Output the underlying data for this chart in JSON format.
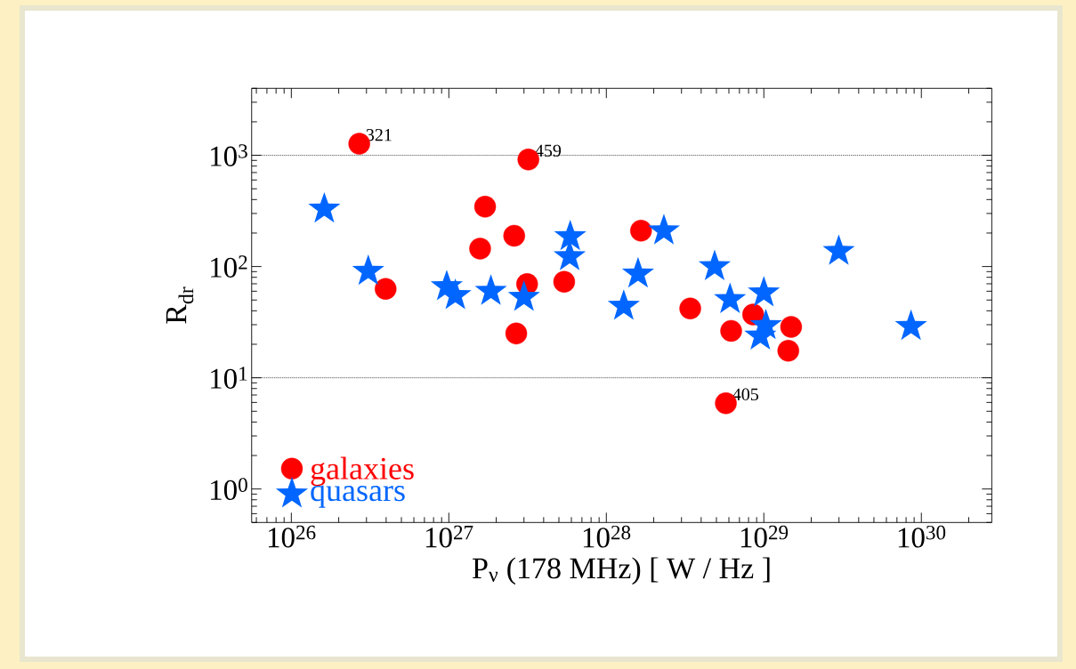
{
  "chart_data": {
    "type": "scatter",
    "xlabel": "P$_{ν}$ (178 MHz) [ W / Hz ]",
    "ylabel": "R$_{dr}$",
    "log": "xy",
    "xlim": [
      5.6e+25,
      2.8e+30
    ],
    "ylim": [
      0.5,
      4000
    ],
    "xticks": [
      {
        "value": 1e+26,
        "label": "10$^{26}$"
      },
      {
        "value": 1e+27,
        "label": "10$^{27}$"
      },
      {
        "value": 1e+28,
        "label": "10$^{28}$"
      },
      {
        "value": 1e+29,
        "label": "10$^{29}$"
      },
      {
        "value": 1e+30,
        "label": "10$^{30}$"
      }
    ],
    "yticks": [
      {
        "value": 1,
        "label": "10$^{0}$"
      },
      {
        "value": 10,
        "label": "10$^{1}$"
      },
      {
        "value": 100,
        "label": "10$^{2}$"
      },
      {
        "value": 1000,
        "label": "10$^{3}$"
      }
    ],
    "legend": "bottom left",
    "grid": false,
    "ref_lines": [
      {
        "axis": "y",
        "value": 10,
        "line_style": "dotted",
        "color": "#000000"
      },
      {
        "axis": "y",
        "value": 1000,
        "line_style": "dotted",
        "color": "#000000"
      }
    ],
    "annotations": [
      {
        "text": "321",
        "x": 2.7e+26,
        "y": 1270
      },
      {
        "text": "459",
        "x": 3.2e+27,
        "y": 916
      },
      {
        "text": "405",
        "x": 5.74e+28,
        "y": 5.9
      }
    ],
    "series": [
      {
        "name": "galaxies",
        "color": "#ff0000",
        "marker": "circle",
        "x": [
          2.7e+26,
          3.2e+27,
          1.7e+27,
          2.6e+27,
          1.58e+27,
          3.97e+26,
          3.14e+27,
          5.4e+27,
          1.66e+28,
          2.68e+27,
          3.41e+28,
          6.2e+28,
          8.55e+28,
          1.49e+29,
          1.43e+29,
          5.74e+28
        ],
        "values": [
          1270,
          916,
          345,
          189,
          145,
          63,
          69.5,
          73,
          210,
          25,
          42,
          26.4,
          37,
          28.7,
          17.5,
          5.9
        ]
      },
      {
        "name": "quasars",
        "color": "#0066ff",
        "marker": "star",
        "x": [
          1.62e+26,
          3.08e+26,
          9.7e+26,
          1.1e+27,
          1.85e+27,
          3e+27,
          5.9e+27,
          5.85e+27,
          1.29e+28,
          1.59e+28,
          2.32e+28,
          4.87e+28,
          6.1e+28,
          1e+29,
          1.03e+29,
          9.5e+28,
          2.99e+29,
          8.6e+29
        ],
        "values": [
          329,
          90.6,
          66,
          55,
          60,
          53,
          186,
          123,
          44,
          86,
          210,
          100,
          50.6,
          58,
          29.5,
          23.8,
          137,
          29
        ]
      }
    ]
  }
}
